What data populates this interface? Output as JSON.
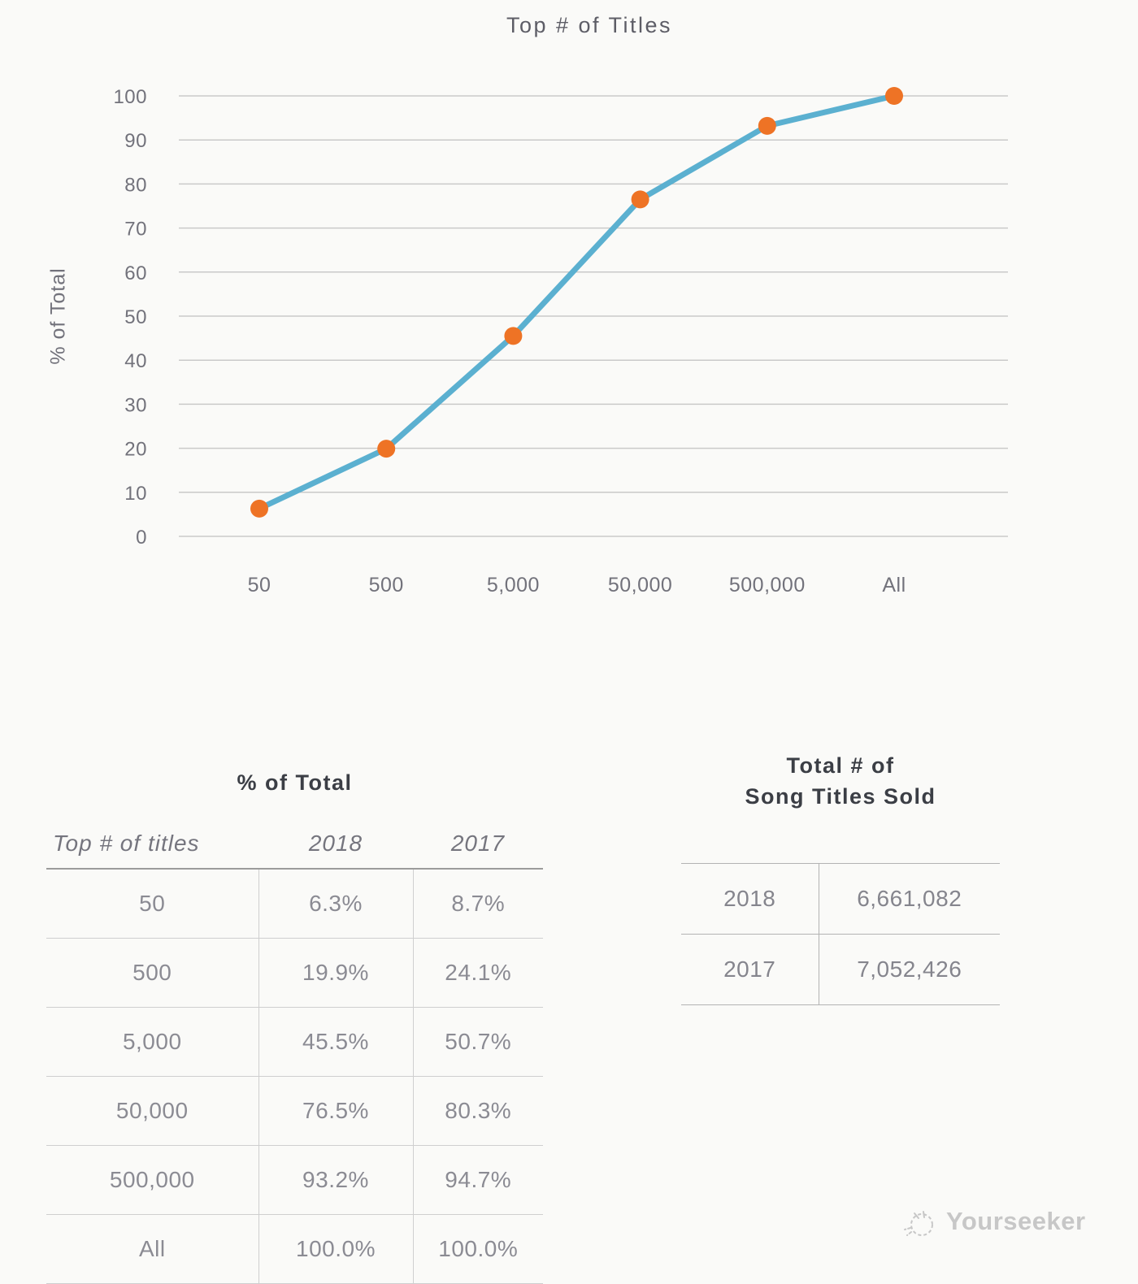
{
  "chart_data": {
    "type": "line",
    "title": "Top # of Titles",
    "xlabel": "",
    "ylabel": "% of Total",
    "categories": [
      "50",
      "500",
      "5,000",
      "50,000",
      "500,000",
      "All"
    ],
    "values": [
      6.3,
      19.9,
      45.5,
      76.5,
      93.2,
      100.0
    ],
    "ylim": [
      0,
      100
    ],
    "yticks": [
      0,
      10,
      20,
      30,
      40,
      50,
      60,
      70,
      80,
      90,
      100
    ],
    "grid": true,
    "legend": false,
    "line_color": "#5bb0d0",
    "marker_color": "#ee7325"
  },
  "tables": {
    "pct_of_total": {
      "title": "% of Total",
      "columns": [
        "Top # of titles",
        "2018",
        "2017"
      ],
      "rows": [
        [
          "50",
          "6.3%",
          "8.7%"
        ],
        [
          "500",
          "19.9%",
          "24.1%"
        ],
        [
          "5,000",
          "45.5%",
          "50.7%"
        ],
        [
          "50,000",
          "76.5%",
          "80.3%"
        ],
        [
          "500,000",
          "93.2%",
          "94.7%"
        ],
        [
          "All",
          "100.0%",
          "100.0%"
        ]
      ]
    },
    "titles_sold": {
      "title": "Total # of\nSong Titles Sold",
      "rows": [
        [
          "2018",
          "6,661,082"
        ],
        [
          "2017",
          "7,052,426"
        ]
      ]
    }
  },
  "watermark": {
    "label": "Yourseeker"
  }
}
